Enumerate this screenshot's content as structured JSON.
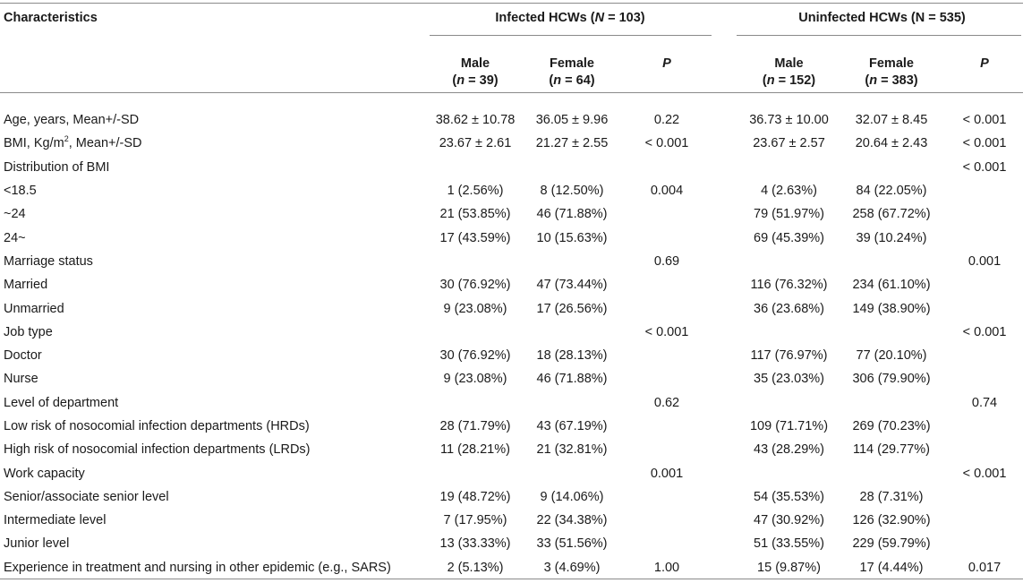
{
  "header": {
    "characteristics": "Characteristics",
    "infected_group_prefix": "Infected HCWs (",
    "infected_group_n": "N",
    "infected_group_suffix": " = 103)",
    "uninfected_group": "Uninfected HCWs (N = 535)",
    "male": "Male",
    "female": "Female",
    "p": "P",
    "n_letter": "n",
    "infected_male_n": " = 39)",
    "infected_female_n": " = 64)",
    "uninfected_male_n": " = 152)",
    "uninfected_female_n": " = 383)"
  },
  "rows": [
    {
      "label": "Age, years, Mean+/-SD",
      "indent": 0,
      "im": "38.62 ± 10.78",
      "if": "36.05 ± 9.96",
      "ip": "0.22",
      "um": "36.73 ± 10.00",
      "uf": "32.07 ± 8.45",
      "up": "< 0.001"
    },
    {
      "label": "BMI, Kg/m",
      "sup": "2",
      "label_rest": ", Mean+/-SD",
      "indent": 0,
      "im": "23.67 ± 2.61",
      "if": "21.27 ± 2.55",
      "ip": "< 0.001",
      "um": "23.67 ± 2.57",
      "uf": "20.64 ± 2.43",
      "up": "< 0.001"
    },
    {
      "label": "Distribution of BMI",
      "indent": 1,
      "im": "",
      "if": "",
      "ip": "",
      "um": "",
      "uf": "",
      "up": "< 0.001"
    },
    {
      "label": "<18.5",
      "indent": 2,
      "im": "1 (2.56%)",
      "if": "8 (12.50%)",
      "ip": "0.004",
      "um": "4 (2.63%)",
      "uf": "84 (22.05%)",
      "up": ""
    },
    {
      "label": "~24",
      "indent": 2,
      "im": "21 (53.85%)",
      "if": "46 (71.88%)",
      "ip": "",
      "um": "79 (51.97%)",
      "uf": "258 (67.72%)",
      "up": ""
    },
    {
      "label": "24~",
      "indent": 2,
      "im": "17 (43.59%)",
      "if": "10 (15.63%)",
      "ip": "",
      "um": "69 (45.39%)",
      "uf": "39 (10.24%)",
      "up": ""
    },
    {
      "label": "Marriage status",
      "indent": 0,
      "im": "",
      "if": "",
      "ip": "0.69",
      "um": "",
      "uf": "",
      "up": "0.001"
    },
    {
      "label": "Married",
      "indent": 2,
      "im": "30 (76.92%)",
      "if": "47 (73.44%)",
      "ip": "",
      "um": "116 (76.32%)",
      "uf": "234 (61.10%)",
      "up": ""
    },
    {
      "label": "Unmarried",
      "indent": 2,
      "im": "9 (23.08%)",
      "if": "17 (26.56%)",
      "ip": "",
      "um": "36 (23.68%)",
      "uf": "149 (38.90%)",
      "up": ""
    },
    {
      "label": "Job type",
      "indent": 0,
      "im": "",
      "if": "",
      "ip": "< 0.001",
      "um": "",
      "uf": "",
      "up": "< 0.001"
    },
    {
      "label": "Doctor",
      "indent": 2,
      "im": "30 (76.92%)",
      "if": "18 (28.13%)",
      "ip": "",
      "um": "117 (76.97%)",
      "uf": "77 (20.10%)",
      "up": ""
    },
    {
      "label": "Nurse",
      "indent": 2,
      "im": "9 (23.08%)",
      "if": "46 (71.88%)",
      "ip": "",
      "um": "35 (23.03%)",
      "uf": "306 (79.90%)",
      "up": ""
    },
    {
      "label": "Level of department",
      "indent": 0,
      "im": "",
      "if": "",
      "ip": "0.62",
      "um": "",
      "uf": "",
      "up": "0.74"
    },
    {
      "label": "Low risk of nosocomial infection departments (HRDs)",
      "indent": 2,
      "im": "28 (71.79%)",
      "if": "43 (67.19%)",
      "ip": "",
      "um": "109 (71.71%)",
      "uf": "269 (70.23%)",
      "up": ""
    },
    {
      "label": "High risk of nosocomial infection departments (LRDs)",
      "indent": 2,
      "im": "11 (28.21%)",
      "if": "21 (32.81%)",
      "ip": "",
      "um": "43 (28.29%)",
      "uf": "114 (29.77%)",
      "up": ""
    },
    {
      "label": "Work capacity",
      "indent": 0,
      "im": "",
      "if": "",
      "ip": "0.001",
      "um": "",
      "uf": "",
      "up": "< 0.001"
    },
    {
      "label": "Senior/associate senior level",
      "indent": 2,
      "im": "19 (48.72%)",
      "if": "9 (14.06%)",
      "ip": "",
      "um": "54 (35.53%)",
      "uf": "28 (7.31%)",
      "up": ""
    },
    {
      "label": "Intermediate level",
      "indent": 2,
      "im": "7 (17.95%)",
      "if": "22 (34.38%)",
      "ip": "",
      "um": "47 (30.92%)",
      "uf": "126 (32.90%)",
      "up": ""
    },
    {
      "label": "Junior level",
      "indent": 2,
      "im": "13 (33.33%)",
      "if": "33 (51.56%)",
      "ip": "",
      "um": "51 (33.55%)",
      "uf": "229 (59.79%)",
      "up": ""
    },
    {
      "label": "Experience in treatment and nursing in other epidemic (e.g., SARS)",
      "indent": 0,
      "im": "2 (5.13%)",
      "if": "3 (4.69%)",
      "ip": "1.00",
      "um": "15 (9.87%)",
      "uf": "17 (4.44%)",
      "up": "0.017"
    }
  ]
}
